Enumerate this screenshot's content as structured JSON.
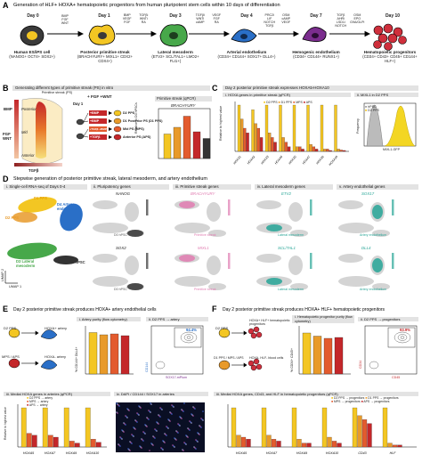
{
  "panelA": {
    "letter": "A",
    "title": "Generation of HLF+ HOXA+ hematopoietic progenitors from human pluripotent stem cells within 10 days of differentiation",
    "stages": [
      {
        "day": "Day 0",
        "name": "Human ES/iPS cell",
        "markers": "(NANOG+ OCT4+ SOX2+)"
      },
      {
        "day": "Day 1",
        "name": "Posterior primitive streak",
        "markers": "(BRACHYURY+ MIXL1+ CDX2+ CDX4+)"
      },
      {
        "day": "Day 3",
        "name": "Lateral mesoderm",
        "markers": "(ETV2+ SCL/TAL1+ LMO2+ FLI1+)"
      },
      {
        "day": "Day 4",
        "name": "Arterial endothelium",
        "markers": "(CD34+ CD144+ SOX17+ DLL4+)"
      },
      {
        "day": "Day 7",
        "name": "Hemogenic endothelium",
        "markers": "(CD34+ CD144+ RUNX1+)"
      },
      {
        "day": "Day 10",
        "name": "Hematopoietic progenitors",
        "markers": "(CD34+ CD43+ CD45+ CD144+ HLF+)"
      }
    ],
    "factors": [
      "BMP\nFGF\nWNT",
      "BMP\nVEGF\nFGF\nTGFβi\nWNTi\nRA",
      "TGFβi\nWNTi\ncAMP\nVEGF\nFGF\nRA",
      "PRC2i\nLIF\nNOTCH\nTGFβ\nOSM\ncAMP\nVEGF",
      "TGFβ\nAHRi\nLSD1i\nNOTCH\nOSM\nEPO\nG9A/GLPi",
      ""
    ]
  },
  "panelB": {
    "letter": "B",
    "title": "Generating different types of primitive streak (PS) in vitro",
    "streak_label": "Primitive streak (PS)",
    "axis": [
      "Posterior",
      "Mid",
      "Anterior"
    ],
    "gradient_left": "BMP",
    "gradient_left2": "FGF\nWNT",
    "gradient_bottom": "TGFβ",
    "header": "+ FGF +WNT",
    "day": "Day 1",
    "conditions": [
      {
        "label": "+BMP",
        "result": "D2 PPS"
      },
      {
        "label": "+BMP",
        "result": "D1 Posterior PS (D1 PPS)"
      },
      {
        "label": "+TGFβ +BMP",
        "result": "Mid PS (MPS)"
      },
      {
        "label": "+TGFβ",
        "result": "Anterior PS (APS)"
      }
    ],
    "chart_title": "Primitive streak (qPCR)",
    "gene": "BRACHYURY",
    "ylabel": "Relative to D0 hPSCs"
  },
  "panelC": {
    "letter": "C",
    "title": "Day 2 posterior primitive streak expresses HOXA5-HOXA10",
    "sub_i": "i. HOXA genes in primitive streak (qPCR)",
    "sub_ii": "ii. MIXL1 in D2 PPS",
    "legend": [
      "D2 PPS",
      "D1 PPS",
      "MPS",
      "APS"
    ],
    "ylabel": "Relative to highest value",
    "genes": [
      "HOXA1",
      "HOXA2",
      "HOXA3",
      "HOXA4",
      "HOXA5",
      "HOXA7",
      "HOXA9",
      "HOXA10"
    ],
    "flow_legend": [
      "hPSC",
      "D2 PPS"
    ],
    "flow_ylabel": "Frequency",
    "flow_xlabel": "MIXL1-GFP"
  },
  "panelD": {
    "letter": "D",
    "title": "Stepwise generation of posterior primitive streak, lateral mesoderm, and artery endothelium",
    "subs": [
      "i. Single-cell RNA-seq of Days 0-4",
      "ii. Pluripotency genes",
      "iii. Primitive streak genes",
      "iv. Lateral mesoderm genes",
      "v. Artery endothelial genes"
    ],
    "clusters": [
      "D1 PPS",
      "D2 PPS",
      "D4 Artery endothelium",
      "D3 Lateral mesoderm",
      "D0 hPSC"
    ],
    "axis1": "UMAP 1",
    "axis2": "UMAP 2",
    "genes": [
      {
        "name": "NANOG",
        "tag": "D0 hPSC"
      },
      {
        "name": "BRACHYURY",
        "tag": "Primitive streak"
      },
      {
        "name": "ETV2",
        "tag": "Lateral mesoderm"
      },
      {
        "name": "SOX17",
        "tag": "Artery endothelium"
      },
      {
        "name": "SOX2",
        "tag": "D0 hPSC"
      },
      {
        "name": "MIXL1",
        "tag": "Primitive streak"
      },
      {
        "name": "SCL/TAL1",
        "tag": "Lateral mesoderm"
      },
      {
        "name": "DLL4",
        "tag": "Artery endothelium"
      }
    ]
  },
  "panelE": {
    "letter": "E",
    "title": "Day 2 posterior primitive streak produces HOXA+ artery endothelial cells",
    "flow_top": "D2 PPS",
    "flow_top_out": "HOXA+ artery",
    "flow_bot": "MPS / APS",
    "flow_bot_out": "HOXA- artery",
    "sub_i": "i. Artery purity (flow cytometry)",
    "sub_ii": "ii. D2 PPS → artery",
    "ylabel": "% CD144+ DLL4+",
    "bars": [
      "D2 PPS → artery",
      "D1 PPS → artery",
      "MPS → artery",
      "APS → artery"
    ],
    "percent": "94.4%",
    "y_ax": "CD144",
    "x_ax": "SOX17-mPlum",
    "sub_iii": "iii. Medial HOXA genes in arteries (qPCR)",
    "legend": [
      "D2 PPS → artery",
      "MPS → artery",
      "APS → artery"
    ],
    "ylabel_iii": "Relative to highest value",
    "genes": [
      "HOXA5",
      "HOXA7",
      "HOXA9",
      "HOXA10"
    ],
    "sub_iv": "iv. DAPI / CD144 / SOX17 in arteries",
    "ns": "ns"
  },
  "panelF": {
    "letter": "F",
    "title": "Day 2 posterior primitive streak produces HOXA+ HLF+ hematopoietic progenitors",
    "flow_top": "D2 PPS",
    "flow_top_out": "HOXA+ HLF+ hematopoietic progenitors",
    "flow_bot": "D1 PPS / MPS / APS",
    "flow_bot_out": "HOXA- HLF- blood cells",
    "sub_i": "i. Hematopoietic progenitor purity (flow cytometry)",
    "sub_ii": "ii. D2 PPS → progenitors",
    "ylabel": "% CD34+ CD45+",
    "percent": "93.9%",
    "y_ax": "CD34",
    "x_ax": "CD45",
    "sub_iii": "iii. Medial HOXA genes, CD43, and HLF in hematopoietic progenitors (qPCR)",
    "legend": [
      "D2 PPS → progenitors",
      "D1 PPS → progenitors",
      "MPS → progenitors",
      "APS → progenitors"
    ],
    "genes": [
      "HOXA5",
      "HOXA7",
      "HOXA9",
      "HOXA10",
      "CD43",
      "HLF"
    ]
  },
  "colors": {
    "d2pps": "#f3c623",
    "d1pps": "#e89a2a",
    "mps": "#e35b2e",
    "aps": "#c4272a",
    "artery": "#2a6fc7",
    "lateral": "#47a84a",
    "hpsc": "#333333",
    "endo": "#7b2d8e",
    "hema": "#cf2f3c",
    "pink": "#e07bb0",
    "teal": "#26a596"
  }
}
